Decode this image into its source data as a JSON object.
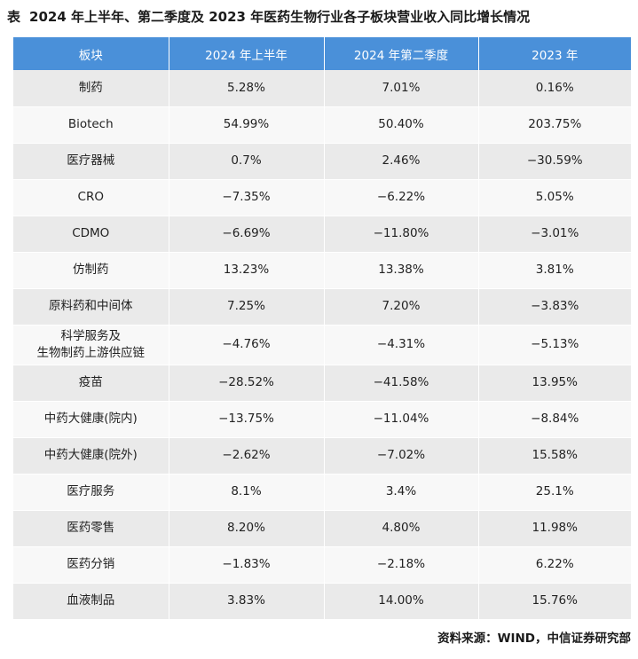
{
  "title": {
    "prefix": "表",
    "text": "2024 年上半年、第二季度及 2023 年医药生物行业各子板块营业收入同比增长情况"
  },
  "table": {
    "headers": [
      "板块",
      "2024 年上半年",
      "2024 年第二季度",
      "2023 年"
    ],
    "rows": [
      {
        "sector": "制药",
        "h1_2024": "5.28%",
        "q2_2024": "7.01%",
        "fy_2023": "0.16%"
      },
      {
        "sector": "Biotech",
        "h1_2024": "54.99%",
        "q2_2024": "50.40%",
        "fy_2023": "203.75%"
      },
      {
        "sector": "医疗器械",
        "h1_2024": "0.7%",
        "q2_2024": "2.46%",
        "fy_2023": "−30.59%"
      },
      {
        "sector": "CRO",
        "h1_2024": "−7.35%",
        "q2_2024": "−6.22%",
        "fy_2023": "5.05%"
      },
      {
        "sector": "CDMO",
        "h1_2024": "−6.69%",
        "q2_2024": "−11.80%",
        "fy_2023": "−3.01%"
      },
      {
        "sector": "仿制药",
        "h1_2024": "13.23%",
        "q2_2024": "13.38%",
        "fy_2023": "3.81%"
      },
      {
        "sector": "原料药和中间体",
        "h1_2024": "7.25%",
        "q2_2024": "7.20%",
        "fy_2023": "−3.83%"
      },
      {
        "sector": "科学服务及\n生物制药上游供应链",
        "h1_2024": "−4.76%",
        "q2_2024": "−4.31%",
        "fy_2023": "−5.13%"
      },
      {
        "sector": "疫苗",
        "h1_2024": "−28.52%",
        "q2_2024": "−41.58%",
        "fy_2023": "13.95%"
      },
      {
        "sector": "中药大健康(院内)",
        "h1_2024": "−13.75%",
        "q2_2024": "−11.04%",
        "fy_2023": "−8.84%"
      },
      {
        "sector": "中药大健康(院外)",
        "h1_2024": "−2.62%",
        "q2_2024": "−7.02%",
        "fy_2023": "15.58%"
      },
      {
        "sector": "医疗服务",
        "h1_2024": "8.1%",
        "q2_2024": "3.4%",
        "fy_2023": "25.1%"
      },
      {
        "sector": "医药零售",
        "h1_2024": "8.20%",
        "q2_2024": "4.80%",
        "fy_2023": "11.98%"
      },
      {
        "sector": "医药分销",
        "h1_2024": "−1.83%",
        "q2_2024": "−2.18%",
        "fy_2023": "6.22%"
      },
      {
        "sector": "血液制品",
        "h1_2024": "3.83%",
        "q2_2024": "14.00%",
        "fy_2023": "15.76%"
      }
    ]
  },
  "source": "资料来源：WIND，中信证券研究部",
  "colors": {
    "header_bg": "#4a90d9",
    "header_text": "#ffffff",
    "row_odd": "#eaeaea",
    "row_even": "#f8f8f8"
  }
}
